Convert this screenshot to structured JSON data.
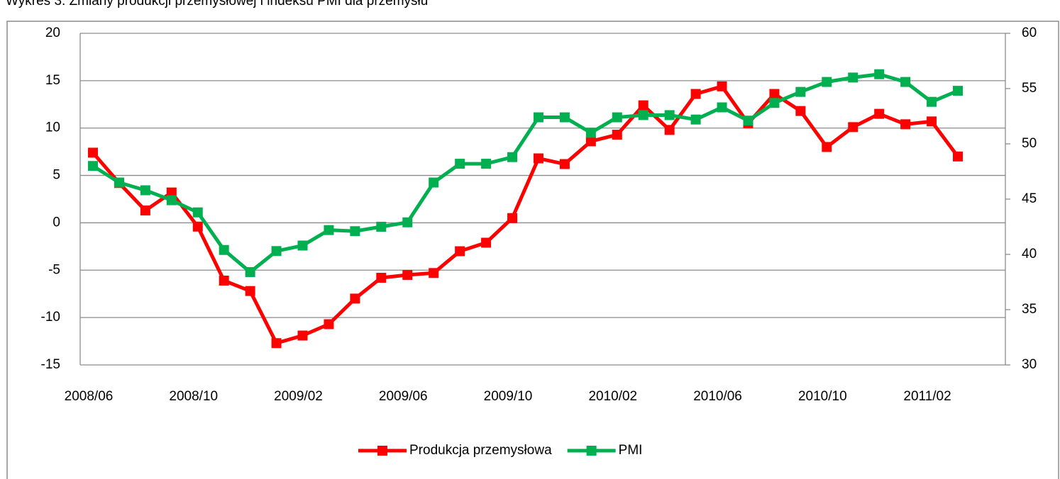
{
  "chart_data": {
    "type": "line",
    "title": "Wykres 3. Zmiany produkcji przemysłowej i indeksu PMI dla przemysłu",
    "categories": [
      "2008/06",
      null,
      null,
      null,
      "2008/10",
      null,
      null,
      null,
      "2009/02",
      null,
      null,
      null,
      "2009/06",
      null,
      null,
      null,
      "2009/10",
      null,
      null,
      null,
      "2010/02",
      null,
      null,
      null,
      "2010/06",
      null,
      null,
      null,
      "2010/10",
      null,
      null,
      null,
      "2011/02",
      null
    ],
    "series": [
      {
        "name": "Produkcja przemysłowa",
        "color": "#ff0000",
        "axis": "y",
        "values": [
          7.4,
          4.2,
          1.3,
          3.2,
          -0.4,
          -6.1,
          -7.2,
          -12.7,
          -11.9,
          -10.7,
          -8.0,
          -5.8,
          -5.5,
          -5.3,
          -3.0,
          -2.1,
          0.5,
          6.8,
          6.2,
          8.6,
          9.3,
          12.4,
          9.8,
          13.6,
          14.4,
          10.5,
          13.6,
          11.8,
          8.0,
          10.1,
          11.5,
          10.4,
          10.7,
          7.0
        ]
      },
      {
        "name": "PMI",
        "color": "#00b050",
        "axis": "y2",
        "values": [
          48.0,
          46.5,
          45.8,
          44.9,
          43.8,
          40.4,
          38.4,
          40.3,
          40.8,
          42.2,
          42.1,
          42.5,
          42.9,
          46.5,
          48.2,
          48.2,
          48.8,
          52.4,
          52.4,
          51.0,
          52.4,
          52.6,
          52.6,
          52.2,
          53.3,
          52.1,
          53.7,
          54.7,
          55.6,
          56.0,
          56.3,
          55.6,
          53.8,
          54.8
        ]
      }
    ],
    "ylim": [
      -15,
      20
    ],
    "yticks": [
      -15,
      -10,
      -5,
      0,
      5,
      10,
      15,
      20
    ],
    "y2lim": [
      30,
      60
    ],
    "y2ticks": [
      30,
      35,
      40,
      45,
      50,
      55,
      60
    ],
    "grid": true,
    "legend": "bottom"
  }
}
